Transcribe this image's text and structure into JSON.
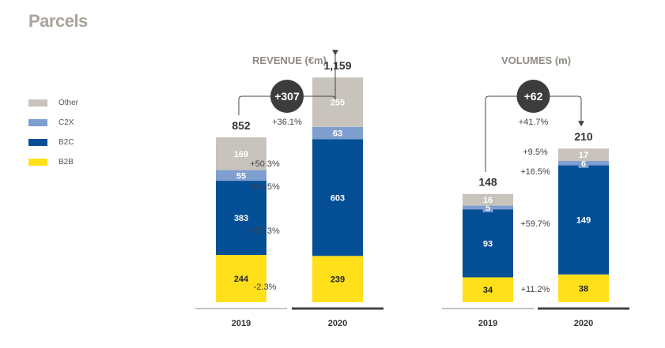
{
  "page_title": "Parcels",
  "legend": [
    {
      "label": "Other",
      "color": "#c8c4bd"
    },
    {
      "label": "C2X",
      "color": "#7f9fd0"
    },
    {
      "label": "B2C",
      "color": "#044f96"
    },
    {
      "label": "B2B",
      "color": "#ffe01a"
    }
  ],
  "chart_data": [
    {
      "type": "bar",
      "stacked": true,
      "title": "REVENUE (€m)",
      "categories": [
        "2019",
        "2020"
      ],
      "series": [
        {
          "name": "B2B",
          "values": [
            244,
            239
          ],
          "color": "#ffe01a",
          "value_color": "#222222"
        },
        {
          "name": "B2C",
          "values": [
            383,
            603
          ],
          "color": "#044f96",
          "value_color": "#ffffff"
        },
        {
          "name": "C2X",
          "values": [
            55,
            63
          ],
          "color": "#7f9fd0",
          "value_color": "#ffffff"
        },
        {
          "name": "Other",
          "values": [
            169,
            255
          ],
          "color": "#c8c4bd",
          "value_color": "#ffffff"
        }
      ],
      "totals": [
        "852",
        "1,159"
      ],
      "change_abs": "+307",
      "change_pct": "+36.1%",
      "segment_changes": [
        "-2.3%",
        "+57.3%",
        "+14.5%",
        "+50.3%"
      ]
    },
    {
      "type": "bar",
      "stacked": true,
      "title": "VOLUMES (m)",
      "categories": [
        "2019",
        "2020"
      ],
      "series": [
        {
          "name": "B2B",
          "values": [
            34,
            38
          ],
          "color": "#ffe01a",
          "value_color": "#222222"
        },
        {
          "name": "B2C",
          "values": [
            93,
            149
          ],
          "color": "#044f96",
          "value_color": "#ffffff"
        },
        {
          "name": "C2X",
          "values": [
            5,
            6
          ],
          "color": "#7f9fd0",
          "value_color": "#ffffff"
        },
        {
          "name": "Other",
          "values": [
            16,
            17
          ],
          "color": "#c8c4bd",
          "value_color": "#ffffff"
        }
      ],
      "totals": [
        "148",
        "210"
      ],
      "change_abs": "+62",
      "change_pct": "+41.7%",
      "segment_changes": [
        "+11.2%",
        "+59.7%",
        "+16.5%",
        "+9.5%"
      ]
    }
  ]
}
